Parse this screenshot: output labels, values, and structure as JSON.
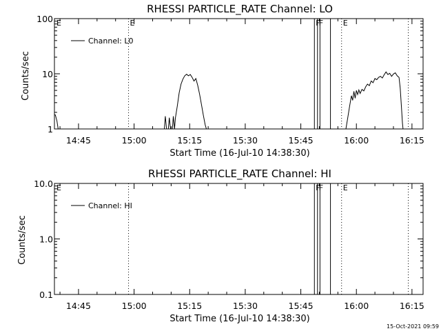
{
  "chart_data": [
    {
      "type": "line",
      "title": "RHESSI PARTICLE_RATE Channel: LO",
      "xlabel": "Start Time (16-Jul-10 14:38:30)",
      "ylabel": "Counts/sec",
      "yscale": "log",
      "ylim": [
        1,
        100
      ],
      "y_ticks": [
        "1",
        "10",
        "100"
      ],
      "xlim": [
        "14:38:30",
        "16:18:00"
      ],
      "x_ticks": [
        "14:45",
        "15:00",
        "15:15",
        "15:30",
        "15:45",
        "16:00",
        "16:15"
      ],
      "series": [
        {
          "name": "Channel: L0",
          "color": "#000000",
          "segments": [
            [
              [
                "14:38:30",
                1.8
              ],
              [
                "14:38:45",
                1.8
              ],
              [
                "14:39:10",
                1.4
              ],
              [
                "14:39:30",
                1.0
              ]
            ],
            [
              [
                "15:08:10",
                1.0
              ],
              [
                "15:08:25",
                1.7
              ],
              [
                "15:08:45",
                1.0
              ],
              [
                "15:09:15",
                1.0
              ],
              [
                "15:09:30",
                1.6
              ],
              [
                "15:09:50",
                1.0
              ],
              [
                "15:10:20",
                1.0
              ],
              [
                "15:10:35",
                1.7
              ],
              [
                "15:10:55",
                1.0
              ],
              [
                "15:11:10",
                1.6
              ],
              [
                "15:11:40",
                2.6
              ],
              [
                "15:12:10",
                4.5
              ],
              [
                "15:12:40",
                6.5
              ],
              [
                "15:13:10",
                8.0
              ],
              [
                "15:13:40",
                9.2
              ],
              [
                "15:14:10",
                9.8
              ],
              [
                "15:14:40",
                9.2
              ],
              [
                "15:15:10",
                9.7
              ],
              [
                "15:15:40",
                8.6
              ],
              [
                "15:16:10",
                7.4
              ],
              [
                "15:16:40",
                8.2
              ],
              [
                "15:17:10",
                6.2
              ],
              [
                "15:17:40",
                4.3
              ],
              [
                "15:18:10",
                2.8
              ],
              [
                "15:18:40",
                1.8
              ],
              [
                "15:19:10",
                1.2
              ],
              [
                "15:19:30",
                1.0
              ]
            ],
            [
              [
                "15:57:10",
                1.0
              ],
              [
                "15:57:40",
                1.6
              ],
              [
                "15:58:10",
                2.6
              ],
              [
                "15:58:40",
                4.0
              ],
              [
                "15:59:00",
                3.3
              ],
              [
                "15:59:20",
                4.8
              ],
              [
                "15:59:40",
                3.6
              ],
              [
                "16:00:00",
                5.0
              ],
              [
                "16:00:20",
                4.2
              ],
              [
                "16:00:40",
                5.1
              ],
              [
                "16:01:00",
                4.4
              ],
              [
                "16:01:30",
                5.2
              ],
              [
                "16:02:00",
                4.9
              ],
              [
                "16:02:30",
                5.8
              ],
              [
                "16:03:00",
                6.5
              ],
              [
                "16:03:30",
                6.1
              ],
              [
                "16:04:00",
                7.4
              ],
              [
                "16:04:30",
                6.9
              ],
              [
                "16:05:00",
                8.2
              ],
              [
                "16:05:30",
                7.8
              ],
              [
                "16:06:00",
                8.6
              ],
              [
                "16:06:30",
                9.0
              ],
              [
                "16:07:00",
                8.4
              ],
              [
                "16:07:30",
                9.6
              ],
              [
                "16:08:00",
                10.8
              ],
              [
                "16:08:30",
                9.7
              ],
              [
                "16:09:00",
                10.2
              ],
              [
                "16:09:30",
                9.0
              ],
              [
                "16:10:00",
                9.9
              ],
              [
                "16:10:30",
                10.4
              ],
              [
                "16:11:00",
                9.2
              ],
              [
                "16:11:30",
                8.6
              ],
              [
                "16:11:50",
                5.5
              ],
              [
                "16:12:10",
                2.5
              ],
              [
                "16:12:25",
                1.3
              ],
              [
                "16:12:35",
                1.0
              ]
            ]
          ]
        }
      ],
      "legend_position": "top-left",
      "event_markers": [
        {
          "time": "14:58:30",
          "style": "dotted",
          "label": "E"
        },
        {
          "time": "15:48:40",
          "style": "solid",
          "label": "F"
        },
        {
          "time": "15:49:30",
          "style": "solid",
          "label": "F"
        },
        {
          "time": "15:50:10",
          "style": "solid",
          "label": ""
        },
        {
          "time": "15:53:00",
          "style": "solid",
          "label": ""
        },
        {
          "time": "15:56:00",
          "style": "dotted",
          "label": "E"
        },
        {
          "time": "16:14:00",
          "style": "dotted",
          "label": ""
        }
      ],
      "corner_labels": [
        "E"
      ]
    },
    {
      "type": "line",
      "title": "RHESSI PARTICLE_RATE Channel: HI",
      "xlabel": "Start Time (16-Jul-10 14:38:30)",
      "ylabel": "Counts/sec",
      "yscale": "log",
      "ylim": [
        0.1,
        10
      ],
      "y_ticks": [
        "0.1",
        "1.0",
        "10.0"
      ],
      "xlim": [
        "14:38:30",
        "16:18:00"
      ],
      "x_ticks": [
        "14:45",
        "15:00",
        "15:15",
        "15:30",
        "15:45",
        "16:00",
        "16:15"
      ],
      "series": [
        {
          "name": "Channel: HI",
          "color": "#000000",
          "segments": []
        }
      ],
      "legend_position": "top-left",
      "event_markers": [
        {
          "time": "14:58:30",
          "style": "dotted",
          "label": ""
        },
        {
          "time": "15:48:40",
          "style": "solid",
          "label": "F"
        },
        {
          "time": "15:49:30",
          "style": "solid",
          "label": "F"
        },
        {
          "time": "15:50:10",
          "style": "solid",
          "label": ""
        },
        {
          "time": "15:53:00",
          "style": "solid",
          "label": ""
        },
        {
          "time": "15:56:00",
          "style": "dotted",
          "label": "E"
        },
        {
          "time": "16:14:00",
          "style": "dotted",
          "label": ""
        }
      ],
      "corner_labels": [
        "E"
      ]
    }
  ],
  "footer": {
    "timestamp": "15-Oct-2021 09:59"
  }
}
